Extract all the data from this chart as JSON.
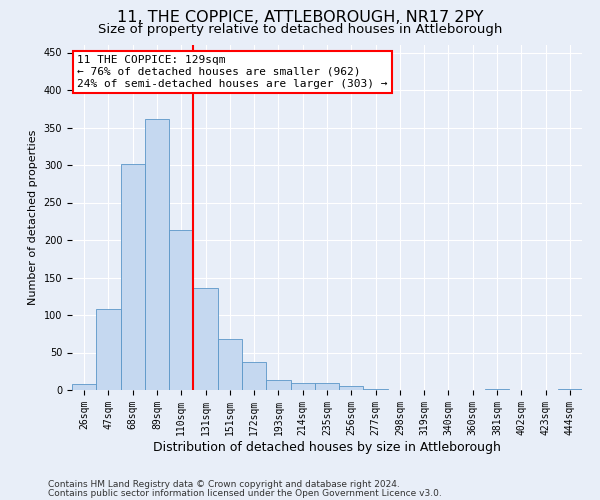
{
  "title1": "11, THE COPPICE, ATTLEBOROUGH, NR17 2PY",
  "title2": "Size of property relative to detached houses in Attleborough",
  "xlabel": "Distribution of detached houses by size in Attleborough",
  "ylabel": "Number of detached properties",
  "categories": [
    "26sqm",
    "47sqm",
    "68sqm",
    "89sqm",
    "110sqm",
    "131sqm",
    "151sqm",
    "172sqm",
    "193sqm",
    "214sqm",
    "235sqm",
    "256sqm",
    "277sqm",
    "298sqm",
    "319sqm",
    "340sqm",
    "360sqm",
    "381sqm",
    "402sqm",
    "423sqm",
    "444sqm"
  ],
  "values": [
    8,
    108,
    301,
    362,
    213,
    136,
    68,
    38,
    13,
    10,
    9,
    6,
    2,
    0,
    0,
    0,
    0,
    2,
    0,
    0,
    2
  ],
  "bar_color": "#c5d8f0",
  "bar_edge_color": "#5a96c8",
  "annotation_line1": "11 THE COPPICE: 129sqm",
  "annotation_line2": "← 76% of detached houses are smaller (962)",
  "annotation_line3": "24% of semi-detached houses are larger (303) →",
  "annotation_box_color": "white",
  "annotation_box_edge_color": "red",
  "vline_color": "red",
  "vline_x_index": 4.5,
  "ylim": [
    0,
    460
  ],
  "yticks": [
    0,
    50,
    100,
    150,
    200,
    250,
    300,
    350,
    400,
    450
  ],
  "footer1": "Contains HM Land Registry data © Crown copyright and database right 2024.",
  "footer2": "Contains public sector information licensed under the Open Government Licence v3.0.",
  "bg_color": "#e8eef8",
  "plot_bg_color": "#e8eef8",
  "title1_fontsize": 11.5,
  "title2_fontsize": 9.5,
  "xlabel_fontsize": 9,
  "ylabel_fontsize": 8,
  "tick_fontsize": 7,
  "footer_fontsize": 6.5,
  "annot_fontsize": 8
}
